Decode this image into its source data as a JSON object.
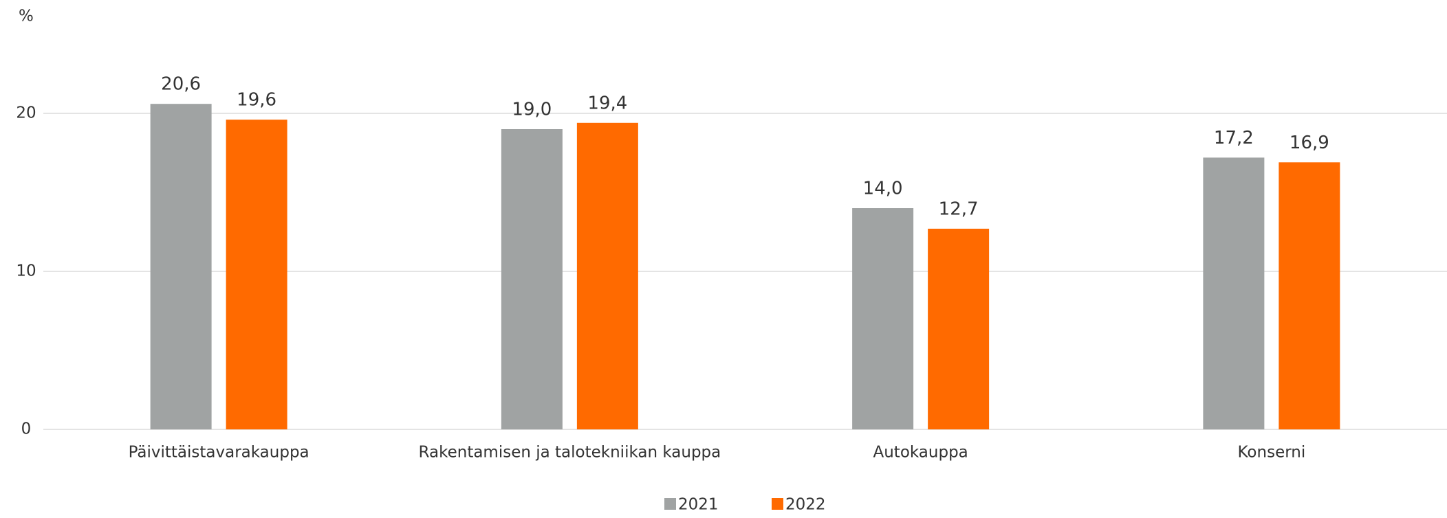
{
  "chart_data": {
    "type": "bar",
    "y_label": "%",
    "categories": [
      "Päivittäistavarakauppa",
      "Rakentamisen ja talotekniikan kauppa",
      "Autokauppa",
      "Konserni"
    ],
    "series": [
      {
        "name": "2021",
        "color": "#a0a3a3",
        "values": [
          20.6,
          19.0,
          14.0,
          17.2
        ],
        "value_labels": [
          "20,6",
          "19,0",
          "14,0",
          "17,2"
        ]
      },
      {
        "name": "2022",
        "color": "#ff6a00",
        "values": [
          19.6,
          19.4,
          12.7,
          16.9
        ],
        "value_labels": [
          "19,6",
          "19,4",
          "12,7",
          "16,9"
        ]
      }
    ],
    "ylim": [
      0,
      25
    ],
    "yticks": [
      0,
      10,
      20
    ],
    "grid": true,
    "legend": "bottom"
  }
}
